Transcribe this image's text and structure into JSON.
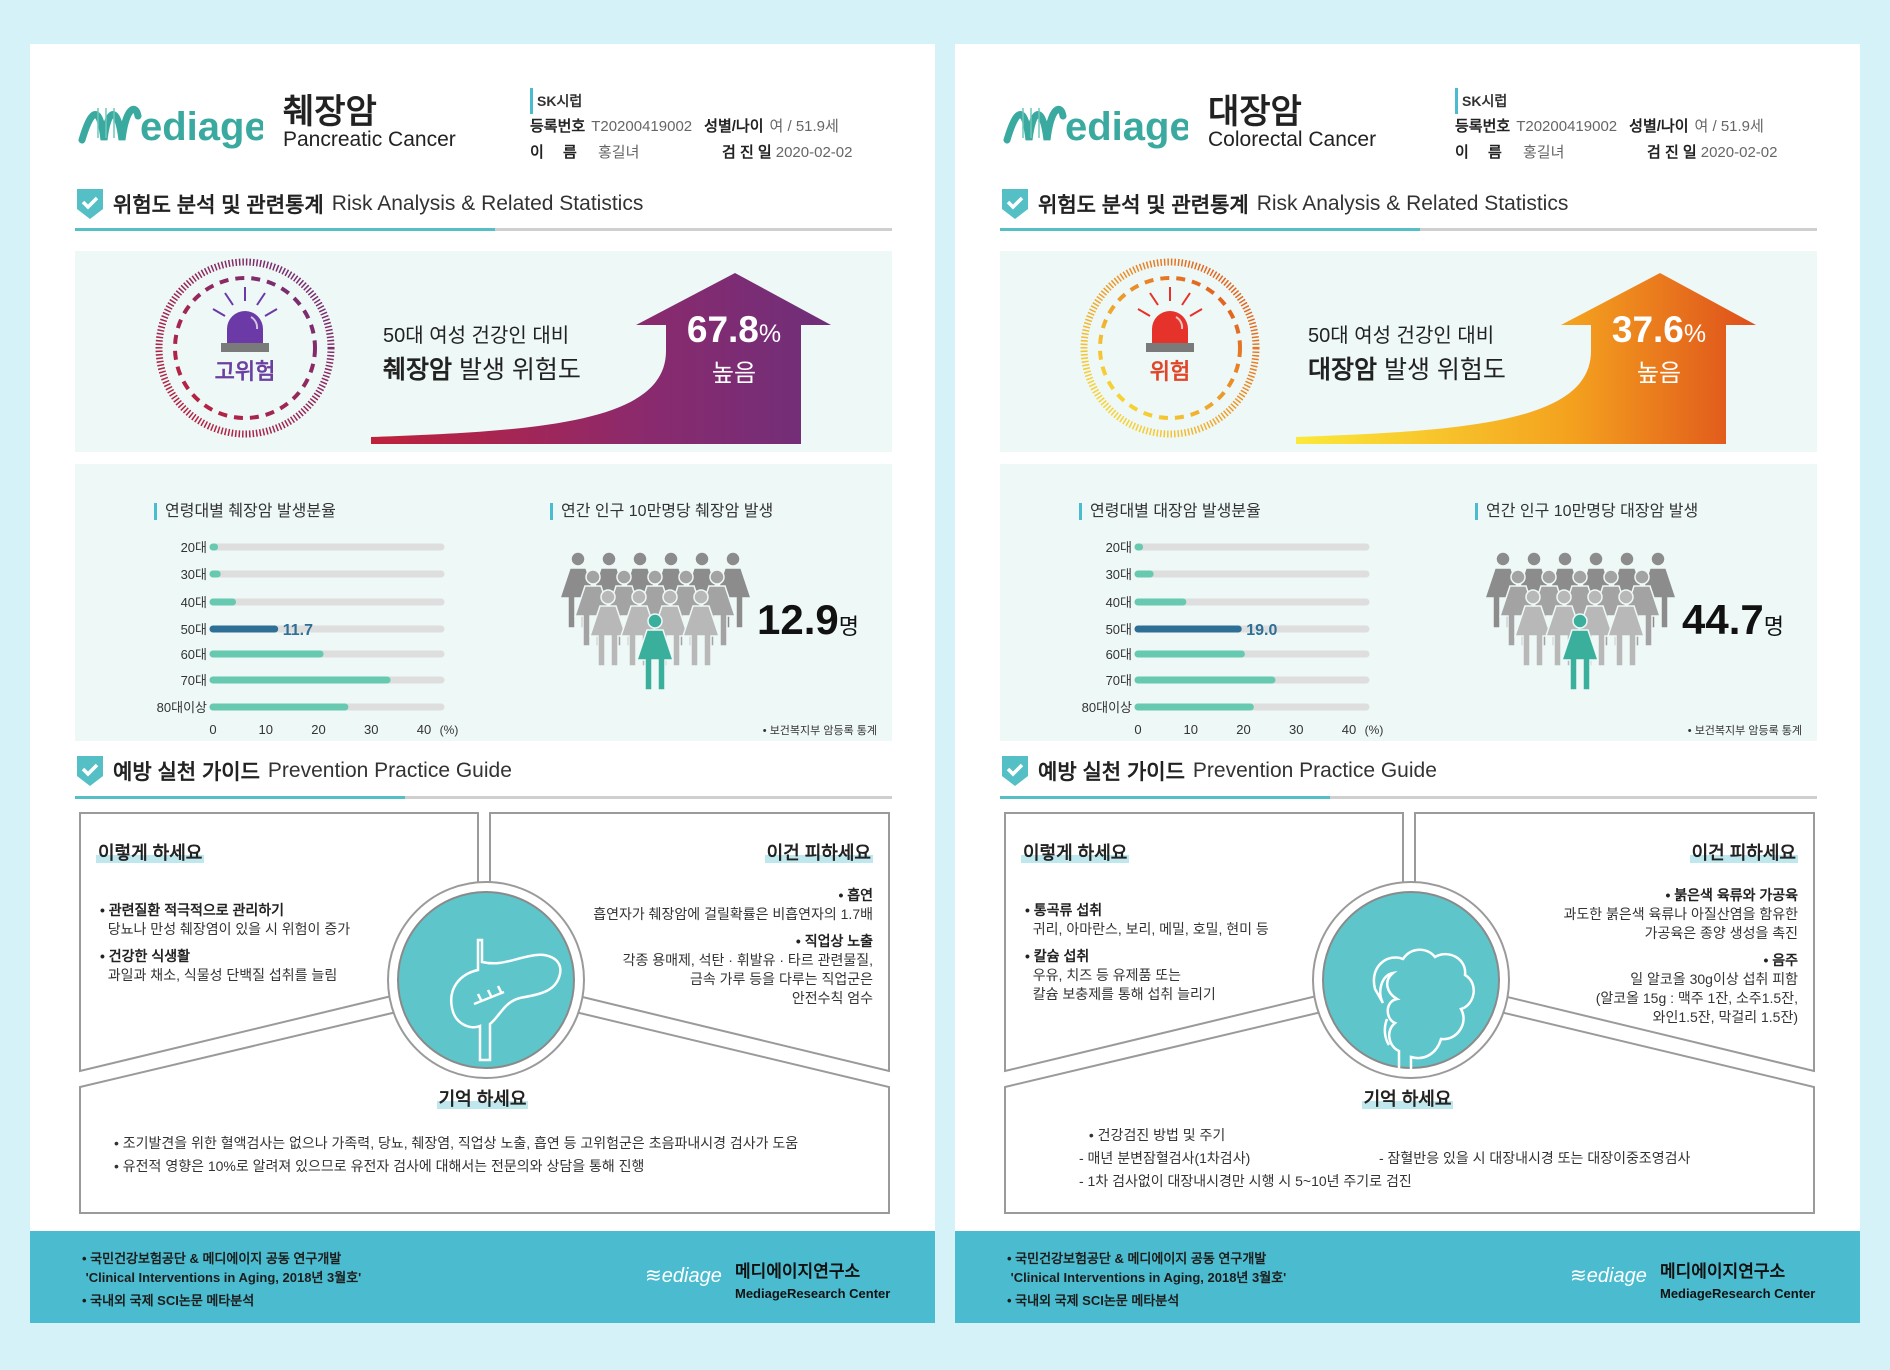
{
  "background_color": "#d4f2f7",
  "pages": [
    {
      "logo": "Mediage",
      "title_ko": "췌장암",
      "title_en": "Pancreatic Cancer",
      "info": {
        "org": "SK시럽",
        "reg_label": "등록번호",
        "reg_value": "T20200419002",
        "sex_age_label": "성별/나이",
        "sex_age_value": "여 / 51.9세",
        "name_label": "이　 름",
        "name_value": "홍길녀",
        "date_label": "검 진 일",
        "date_value": "2020-02-02"
      },
      "section1": {
        "ko": "위험도 분석 및 관련통계",
        "en": "Risk Analysis & Related Statistics"
      },
      "risk": {
        "level": "고위험",
        "line1": "50대 여성 건강인 대비",
        "cancer": "췌장암",
        "line2_rest": " 발생 위험도",
        "percent": "67.8",
        "percent_unit": "%",
        "status": "높음",
        "level_color": "#6b3fa0",
        "gradient": [
          "#c0213a",
          "#8a2a6e",
          "#6e2f79"
        ],
        "siren_color": "#6b3aa6"
      },
      "age_chart_title": "연령대별 췌장암 발생분율",
      "incidence": {
        "title": "연간 인구 10만명당 췌장암 발생",
        "value": "12.9",
        "unit": "명",
        "source": "• 보건복지부 암등록 통계"
      },
      "section2": {
        "ko": "예방 실천 가이드",
        "en": "Prevention Practice Guide"
      },
      "guide": {
        "organ_icon": "pancreas-icon",
        "do": {
          "title": "이렇게 하세요",
          "items": [
            {
              "head": "• 관련질환 적극적으로 관리하기",
              "lines": [
                "  당뇨나 만성 췌장염이 있을 시 위험이 증가"
              ]
            },
            {
              "head": "• 건강한 식생활",
              "lines": [
                "  과일과 채소, 식물성 단백질 섭취를 늘림"
              ]
            }
          ]
        },
        "avoid": {
          "title": "이건 피하세요",
          "items": [
            {
              "head": "• 흡연",
              "lines": [
                "흡연자가 췌장암에 걸릴확률은 비흡연자의 1.7배"
              ]
            },
            {
              "head": "• 직업상 노출",
              "lines": [
                "각종 용매제, 석탄 · 휘발유 · 타르 관련물질,",
                "금속 가루 등을 다루는 직업군은",
                "안전수칙 엄수"
              ]
            }
          ]
        },
        "remember": {
          "title": "기억 하세요",
          "rows": [
            [
              "• 조기발견을 위한 혈액검사는 없으나 가족력, 당뇨, 췌장염, 직업상 노출, 흡연 등 고위험군은 초음파내시경 검사가 도움"
            ],
            [
              "• 유전적 영향은 10%로 알려져 있으므로 유전자 검사에 대해서는 전문의와 상담을 통해 진행"
            ]
          ]
        }
      },
      "footer": {
        "lines": [
          "• 국민건강보험공단 & 메디에이지 공동 연구개발",
          " 'Clinical Interventions in Aging, 2018년 3월호'",
          "• 국내외 국제 SCI논문 메타분석"
        ],
        "logo": "Mediage",
        "center_ko": "메디에이지연구소",
        "center_en": "MediageResearch Center"
      }
    },
    {
      "logo": "Mediage",
      "title_ko": "대장암",
      "title_en": "Colorectal Cancer",
      "info": {
        "org": "SK시럽",
        "reg_label": "등록번호",
        "reg_value": "T20200419002",
        "sex_age_label": "성별/나이",
        "sex_age_value": "여 / 51.9세",
        "name_label": "이　 름",
        "name_value": "홍길녀",
        "date_label": "검 진 일",
        "date_value": "2020-02-02"
      },
      "section1": {
        "ko": "위험도 분석 및 관련통계",
        "en": "Risk Analysis & Related Statistics"
      },
      "risk": {
        "level": "위험",
        "line1": "50대 여성 건강인 대비",
        "cancer": "대장암",
        "line2_rest": " 발생 위험도",
        "percent": "37.6",
        "percent_unit": "%",
        "status": "높음",
        "level_color": "#e0462a",
        "gradient": [
          "#fbe93a",
          "#f4a11e",
          "#de4f1c"
        ],
        "siren_color": "#e5322a"
      },
      "age_chart_title": "연령대별 대장암 발생분율",
      "incidence": {
        "title": "연간 인구 10만명당 대장암 발생",
        "value": "44.7",
        "unit": "명",
        "source": "• 보건복지부 암등록 통계"
      },
      "section2": {
        "ko": "예방 실천 가이드",
        "en": "Prevention Practice Guide"
      },
      "guide": {
        "organ_icon": "colon-icon",
        "do": {
          "title": "이렇게 하세요",
          "items": [
            {
              "head": "• 통곡류 섭취",
              "lines": [
                "  귀리, 아마란스, 보리, 메밀, 호밀, 현미 등"
              ]
            },
            {
              "head": "• 칼슘 섭취",
              "lines": [
                "  우유, 치즈 등 유제품 또는",
                "  칼슘 보충제를 통해 섭취 늘리기"
              ]
            }
          ]
        },
        "avoid": {
          "title": "이건 피하세요",
          "items": [
            {
              "head": "• 붉은색 육류와 가공육",
              "lines": [
                "과도한 붉은색 육류나 아질산염을 함유한",
                "가공육은 종양 생성을 촉진"
              ]
            },
            {
              "head": "• 음주",
              "lines": [
                "일 알코올 30g이상 섭취 피함",
                "(알코올 15g : 맥주 1잔, 소주1.5잔,",
                "와인1.5잔, 막걸리 1.5잔)"
              ]
            }
          ]
        },
        "remember": {
          "title": "기억 하세요",
          "rows": [
            [
              " • 건강검진 방법 및 주기"
            ],
            [
              "- 매년 분변잠혈검사(1차검사)",
              "- 잠혈반응 있을 시 대장내시경 또는 대장이중조영검사"
            ],
            [
              "- 1차 검사없이 대장내시경만 시행 시 5~10년 주기로 검진"
            ]
          ]
        }
      },
      "footer": {
        "lines": [
          "• 국민건강보험공단 & 메디에이지 공동 연구개발",
          " 'Clinical Interventions in Aging, 2018년 3월호'",
          "• 국내외 국제 SCI논문 메타분석"
        ],
        "logo": "Mediage",
        "center_ko": "메디에이지연구소",
        "center_en": "MediageResearch Center"
      }
    }
  ],
  "chart_data": [
    {
      "type": "bar",
      "orientation": "horizontal",
      "title": "연령대별 췌장암 발생분율",
      "categories": [
        "20대",
        "30대",
        "40대",
        "50대",
        "60대",
        "70대",
        "80대이상"
      ],
      "values": [
        0.3,
        0.8,
        3.7,
        11.7,
        20.3,
        33.0,
        25.0
      ],
      "highlight": {
        "category": "50대",
        "label": "11.7"
      },
      "xlim": [
        0,
        40
      ],
      "xticks": [
        "0",
        "10",
        "20",
        "30",
        "40"
      ],
      "xunit": "(%)",
      "colors": {
        "bar": "#66c9b0",
        "highlight": "#2e6f96",
        "track": "#dedede"
      }
    },
    {
      "type": "bar",
      "orientation": "horizontal",
      "title": "연령대별 대장암 발생분율",
      "categories": [
        "20대",
        "30대",
        "40대",
        "50대",
        "60대",
        "70대",
        "80대이상"
      ],
      "values": [
        0.3,
        2.3,
        8.5,
        19.0,
        19.6,
        25.4,
        21.3
      ],
      "highlight": {
        "category": "50대",
        "label": "19.0"
      },
      "xlim": [
        0,
        40
      ],
      "xticks": [
        "0",
        "10",
        "20",
        "30",
        "40"
      ],
      "xunit": "(%)",
      "colors": {
        "bar": "#66c9b0",
        "highlight": "#2e6f96",
        "track": "#dedede"
      }
    }
  ]
}
